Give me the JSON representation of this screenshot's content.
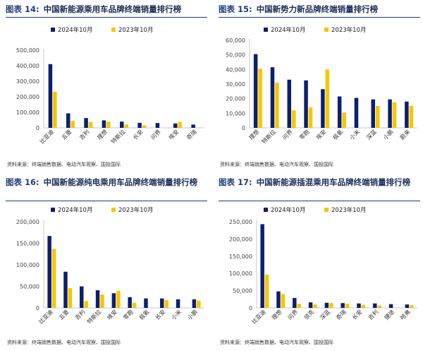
{
  "colors": {
    "series2024": "#0c1f6e",
    "series2023": "#f7c600",
    "axis": "#c8c8c8",
    "title": "#1f3d7a"
  },
  "source_prefix": "资料来源：",
  "source_text": "终端销售数据、电动汽车观察、国投国际",
  "chart_data": [
    {
      "type": "bar",
      "label": "图表 14:",
      "title": "中国新能源乘用车品牌终端销量排行榜",
      "series": [
        {
          "name": "2024年10月",
          "values": [
            410000,
            93000,
            63000,
            48000,
            40000,
            32000,
            31000,
            28000,
            21000
          ]
        },
        {
          "name": "2023年10月",
          "values": [
            233000,
            45000,
            38000,
            40000,
            22000,
            17000,
            0,
            38000,
            0
          ]
        }
      ],
      "categories": [
        "比亚迪",
        "五菱",
        "吉利",
        "理想",
        "特斯拉",
        "长安",
        "问界",
        "埃安",
        "奇瑞"
      ],
      "yticks": [
        "0",
        "100,000",
        "200,000",
        "300,000",
        "400,000",
        "500,000"
      ],
      "ylim": [
        0,
        500000
      ]
    },
    {
      "type": "bar",
      "label": "图表 15:",
      "title": "中国新势力新品牌终端销量排行榜",
      "series": [
        {
          "name": "2024年10月",
          "values": [
            50500,
            41500,
            33000,
            32500,
            26500,
            21500,
            20500,
            19500,
            19500,
            18000
          ]
        },
        {
          "name": "2023年10月",
          "values": [
            40500,
            31000,
            12000,
            14000,
            40000,
            10500,
            0,
            15000,
            17500,
            15000
          ]
        }
      ],
      "categories": [
        "理想",
        "特斯拉",
        "问界",
        "零跑",
        "埃安",
        "极氪",
        "小米",
        "深蓝",
        "小鹏",
        "蔚来"
      ],
      "yticks": [
        "0",
        "10,000",
        "20,000",
        "30,000",
        "40,000",
        "50,000",
        "60,000"
      ],
      "ylim": [
        0,
        60000
      ]
    },
    {
      "type": "bar",
      "label": "图表 16:",
      "title": "中国新能源纯电乘用车品牌终端销量排行榜",
      "series": [
        {
          "name": "2024年10月",
          "values": [
            167000,
            84000,
            50000,
            41000,
            34000,
            25000,
            22000,
            22000,
            20000,
            20000
          ]
        },
        {
          "name": "2023年10月",
          "values": [
            137000,
            46000,
            16000,
            31000,
            40000,
            12000,
            0,
            18000,
            0,
            17000
          ]
        }
      ],
      "categories": [
        "比亚迪",
        "五菱",
        "吉利",
        "特斯拉",
        "埃安",
        "零跑",
        "极氪",
        "长安",
        "小米",
        "小鹏"
      ],
      "yticks": [
        "0",
        "50,000",
        "100,000",
        "150,000",
        "200,000"
      ],
      "ylim": [
        0,
        200000
      ]
    },
    {
      "type": "bar",
      "label": "图表 17:",
      "title": "中国新能源插混乘用车品牌终端销量排行榜",
      "series": [
        {
          "name": "2024年10月",
          "values": [
            243000,
            48000,
            29000,
            16000,
            15000,
            14000,
            13000,
            13000,
            11000,
            10000
          ]
        },
        {
          "name": "2023年10月",
          "values": [
            97000,
            40000,
            12000,
            10000,
            14000,
            12000,
            9000,
            7000,
            0,
            8000
          ]
        }
      ],
      "categories": [
        "比亚迪",
        "理想",
        "问界",
        "领克",
        "深蓝",
        "奇瑞",
        "长安",
        "吉利",
        "捷途",
        "哈弗"
      ],
      "yticks": [
        "0",
        "50,000",
        "100,000",
        "150,000",
        "200,000",
        "250,000"
      ],
      "ylim": [
        0,
        250000
      ]
    }
  ]
}
